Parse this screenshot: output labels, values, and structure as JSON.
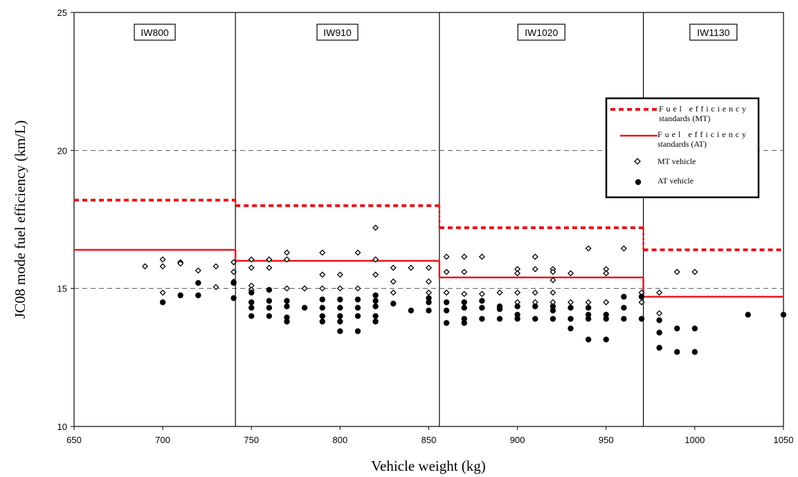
{
  "chart_data": {
    "type": "scatter",
    "xlabel": "Vehicle weight (kg)",
    "ylabel": "JC08 mode fuel efficiency (km/L)",
    "xlim": [
      650,
      1050
    ],
    "ylim": [
      10,
      25
    ],
    "x_ticks": [
      "650",
      "700",
      "750",
      "800",
      "850",
      "900",
      "950",
      "1000",
      "1050"
    ],
    "y_ticks": [
      "10",
      "15",
      "20",
      "25"
    ],
    "grid": "dashed horizontal at 15 and 20",
    "legend_position": "right, upper",
    "class_boundaries": [
      741,
      856,
      971
    ],
    "weight_classes": [
      {
        "label": "IW800",
        "from": 650,
        "to": 741
      },
      {
        "label": "IW910",
        "from": 741,
        "to": 856
      },
      {
        "label": "IW1020",
        "from": 856,
        "to": 971
      },
      {
        "label": "IW1130",
        "from": 971,
        "to": 1050
      }
    ],
    "series": [
      {
        "name": "Fuel efficiency standards (MT)",
        "legend_line1": "Fuel efficiency",
        "legend_line2": "standards (MT)",
        "style": "dashed",
        "color": "#e8141b",
        "steps": [
          {
            "x1": 650,
            "x2": 741,
            "y": 18.2
          },
          {
            "x1": 741,
            "x2": 856,
            "y": 18.0
          },
          {
            "x1": 856,
            "x2": 971,
            "y": 17.2
          },
          {
            "x1": 971,
            "x2": 1050,
            "y": 16.4
          }
        ]
      },
      {
        "name": "Fuel efficiency standards (AT)",
        "legend_line1": "Fuel efficiency",
        "legend_line2": "standards (AT)",
        "style": "solid",
        "color": "#e8141b",
        "steps": [
          {
            "x1": 650,
            "x2": 741,
            "y": 16.4
          },
          {
            "x1": 741,
            "x2": 856,
            "y": 16.0
          },
          {
            "x1": 856,
            "x2": 971,
            "y": 15.4
          },
          {
            "x1": 971,
            "x2": 1050,
            "y": 14.7
          }
        ]
      },
      {
        "name": "MT vehicle",
        "marker": "open-diamond",
        "points": [
          [
            690,
            15.8
          ],
          [
            700,
            16.05
          ],
          [
            700,
            15.8
          ],
          [
            700,
            14.85
          ],
          [
            710,
            15.95
          ],
          [
            710,
            15.9
          ],
          [
            720,
            15.65
          ],
          [
            730,
            15.8
          ],
          [
            730,
            15.05
          ],
          [
            740,
            15.95
          ],
          [
            740,
            15.6
          ],
          [
            740,
            15.25
          ],
          [
            750,
            16.05
          ],
          [
            750,
            15.75
          ],
          [
            750,
            15.1
          ],
          [
            750,
            14.95
          ],
          [
            760,
            16.05
          ],
          [
            760,
            15.75
          ],
          [
            770,
            16.3
          ],
          [
            770,
            16.05
          ],
          [
            770,
            15.0
          ],
          [
            780,
            15.0
          ],
          [
            790,
            16.3
          ],
          [
            790,
            15.5
          ],
          [
            790,
            15.0
          ],
          [
            800,
            15.5
          ],
          [
            800,
            15.0
          ],
          [
            810,
            16.3
          ],
          [
            810,
            15.0
          ],
          [
            820,
            17.2
          ],
          [
            820,
            16.05
          ],
          [
            820,
            15.5
          ],
          [
            830,
            15.75
          ],
          [
            830,
            15.25
          ],
          [
            830,
            14.85
          ],
          [
            840,
            15.75
          ],
          [
            850,
            15.75
          ],
          [
            850,
            15.25
          ],
          [
            850,
            14.85
          ],
          [
            860,
            16.15
          ],
          [
            860,
            15.6
          ],
          [
            860,
            14.85
          ],
          [
            870,
            16.15
          ],
          [
            870,
            15.6
          ],
          [
            870,
            14.8
          ],
          [
            880,
            16.15
          ],
          [
            880,
            14.8
          ],
          [
            890,
            14.85
          ],
          [
            900,
            15.7
          ],
          [
            900,
            15.55
          ],
          [
            900,
            14.85
          ],
          [
            900,
            14.5
          ],
          [
            910,
            16.15
          ],
          [
            910,
            15.7
          ],
          [
            910,
            14.85
          ],
          [
            910,
            14.5
          ],
          [
            920,
            15.7
          ],
          [
            920,
            15.6
          ],
          [
            920,
            15.3
          ],
          [
            920,
            14.85
          ],
          [
            920,
            14.5
          ],
          [
            930,
            15.55
          ],
          [
            930,
            14.5
          ],
          [
            940,
            16.45
          ],
          [
            940,
            14.5
          ],
          [
            950,
            15.7
          ],
          [
            950,
            15.55
          ],
          [
            950,
            14.5
          ],
          [
            960,
            16.45
          ],
          [
            970,
            14.85
          ],
          [
            970,
            14.5
          ],
          [
            980,
            14.85
          ],
          [
            980,
            14.1
          ],
          [
            990,
            15.6
          ],
          [
            1000,
            15.6
          ]
        ]
      },
      {
        "name": "AT vehicle",
        "marker": "filled-circle",
        "points": [
          [
            700,
            14.5
          ],
          [
            710,
            14.75
          ],
          [
            720,
            15.2
          ],
          [
            720,
            14.75
          ],
          [
            740,
            15.2
          ],
          [
            740,
            14.65
          ],
          [
            750,
            14.85
          ],
          [
            750,
            14.5
          ],
          [
            750,
            14.3
          ],
          [
            750,
            14.0
          ],
          [
            760,
            14.95
          ],
          [
            760,
            14.55
          ],
          [
            760,
            14.3
          ],
          [
            760,
            14.0
          ],
          [
            770,
            14.55
          ],
          [
            770,
            14.35
          ],
          [
            770,
            13.95
          ],
          [
            770,
            13.8
          ],
          [
            780,
            14.3
          ],
          [
            790,
            14.6
          ],
          [
            790,
            14.3
          ],
          [
            790,
            14.0
          ],
          [
            790,
            13.8
          ],
          [
            800,
            14.6
          ],
          [
            800,
            14.3
          ],
          [
            800,
            14.0
          ],
          [
            800,
            13.8
          ],
          [
            800,
            13.45
          ],
          [
            810,
            14.6
          ],
          [
            810,
            14.3
          ],
          [
            810,
            14.0
          ],
          [
            810,
            13.45
          ],
          [
            820,
            14.75
          ],
          [
            820,
            14.55
          ],
          [
            820,
            14.35
          ],
          [
            820,
            14.0
          ],
          [
            820,
            13.8
          ],
          [
            830,
            14.45
          ],
          [
            840,
            14.2
          ],
          [
            850,
            14.65
          ],
          [
            850,
            14.5
          ],
          [
            850,
            14.2
          ],
          [
            860,
            14.5
          ],
          [
            860,
            14.2
          ],
          [
            860,
            13.75
          ],
          [
            870,
            14.5
          ],
          [
            870,
            14.3
          ],
          [
            870,
            13.9
          ],
          [
            870,
            13.75
          ],
          [
            880,
            14.55
          ],
          [
            880,
            14.3
          ],
          [
            880,
            13.9
          ],
          [
            890,
            14.35
          ],
          [
            890,
            14.25
          ],
          [
            890,
            13.9
          ],
          [
            900,
            14.35
          ],
          [
            900,
            14.05
          ],
          [
            900,
            13.9
          ],
          [
            910,
            14.35
          ],
          [
            910,
            13.9
          ],
          [
            920,
            14.35
          ],
          [
            920,
            14.2
          ],
          [
            920,
            13.9
          ],
          [
            930,
            14.3
          ],
          [
            930,
            13.9
          ],
          [
            930,
            13.55
          ],
          [
            940,
            14.3
          ],
          [
            940,
            14.05
          ],
          [
            940,
            13.9
          ],
          [
            940,
            13.15
          ],
          [
            950,
            14.05
          ],
          [
            950,
            13.9
          ],
          [
            950,
            13.15
          ],
          [
            960,
            14.7
          ],
          [
            960,
            14.3
          ],
          [
            960,
            13.9
          ],
          [
            970,
            14.7
          ],
          [
            970,
            13.9
          ],
          [
            980,
            13.85
          ],
          [
            980,
            13.4
          ],
          [
            980,
            12.85
          ],
          [
            990,
            13.55
          ],
          [
            990,
            12.7
          ],
          [
            1000,
            13.55
          ],
          [
            1000,
            12.7
          ],
          [
            1030,
            14.05
          ],
          [
            1050,
            14.05
          ]
        ]
      }
    ]
  }
}
